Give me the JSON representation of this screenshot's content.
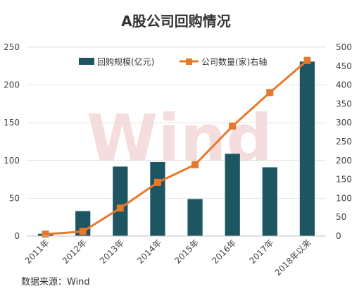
{
  "chart_data": {
    "type": "bar+line",
    "title": "A股公司回购情况",
    "categories": [
      "2011年",
      "2012年",
      "2013年",
      "2014年",
      "2015年",
      "2016年",
      "2017年",
      "2018年以来"
    ],
    "series": [
      {
        "name": "回购规模(亿元)",
        "type": "bar",
        "axis": "left",
        "values": [
          3,
          33,
          92,
          98,
          49,
          109,
          91,
          231
        ]
      },
      {
        "name": "公司数量(家)右轴",
        "type": "line",
        "axis": "right",
        "values": [
          5,
          12,
          74,
          142,
          189,
          291,
          380,
          465
        ]
      }
    ],
    "y_left": {
      "ylim": [
        0,
        250
      ],
      "ticks": [
        "0",
        "50",
        "100",
        "150",
        "200",
        "250"
      ]
    },
    "y_right": {
      "ylim": [
        0,
        500
      ],
      "ticks": [
        "0",
        "50",
        "100",
        "150",
        "200",
        "250",
        "300",
        "350",
        "400",
        "450",
        "500"
      ]
    },
    "grid": true,
    "legend_position": "top",
    "colors": {
      "bar": "#1e5563",
      "line": "#e8782a"
    }
  },
  "watermark": "Wind",
  "source_note": "数据来源：Wind"
}
